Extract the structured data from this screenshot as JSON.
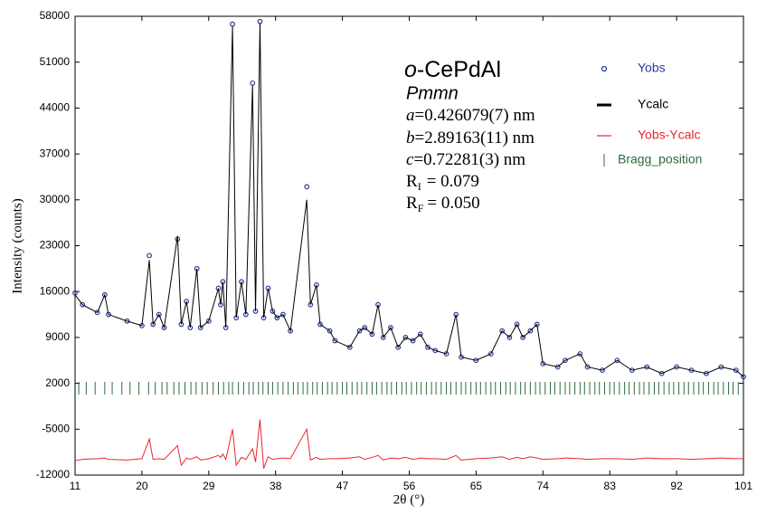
{
  "chart_data": {
    "type": "rietveld",
    "x_label": "2θ (°)",
    "y_label": "Intensity (counts)",
    "xlim": [
      11,
      101
    ],
    "xticks": [
      11,
      20,
      29,
      38,
      47,
      56,
      65,
      74,
      83,
      92,
      101
    ],
    "ylim": [
      -12000,
      58000
    ],
    "yticks": [
      -12000,
      -5000,
      2000,
      9000,
      16000,
      23000,
      30000,
      37000,
      44000,
      51000,
      58000
    ],
    "grid": false,
    "annotation": {
      "compound": {
        "prefix": "o",
        "name": "-CePdAl"
      },
      "space_group": "Pmmn",
      "a": {
        "symbol": "a",
        "text": "=0.426079(7) nm"
      },
      "b": {
        "symbol": "b",
        "text": "=2.89163(11) nm"
      },
      "c": {
        "symbol": "c",
        "text": "=0.72281(3)  nm"
      },
      "RI": {
        "base": "R",
        "sub": "I",
        "text": "= 0.079"
      },
      "RF": {
        "base": "R",
        "sub": "F",
        "text": "= 0.050"
      }
    },
    "x": [
      11,
      12,
      14,
      15,
      15.5,
      18,
      20,
      21,
      21.5,
      22.3,
      23,
      24.8,
      25.3,
      26,
      26.5,
      27.4,
      27.9,
      29,
      30.3,
      30.6,
      30.9,
      31.3,
      32.2,
      32.7,
      33.4,
      34,
      34.9,
      35.3,
      35.9,
      36.4,
      37,
      37.6,
      38.2,
      39,
      40,
      42.2,
      42.7,
      43.5,
      44,
      45.3,
      46,
      48,
      49.3,
      50,
      51,
      51.8,
      52.5,
      53.5,
      54.5,
      55.5,
      56.5,
      57.5,
      58.5,
      59.5,
      61,
      62.3,
      63,
      65,
      67,
      68.5,
      69.5,
      70.5,
      71.3,
      72.3,
      73.2,
      74,
      76,
      77,
      79,
      80,
      82,
      84,
      86,
      88,
      90,
      92,
      94,
      96,
      98,
      100,
      101
    ],
    "series": [
      {
        "name": "Yobs",
        "color": "#2b3a9c",
        "marker": "circle",
        "values": [
          15800,
          14000,
          12800,
          15500,
          12500,
          11500,
          10800,
          21500,
          11000,
          12500,
          10500,
          24000,
          11000,
          14500,
          10500,
          19500,
          10500,
          11500,
          16500,
          14000,
          17500,
          10500,
          56800,
          12000,
          17500,
          12500,
          47800,
          13000,
          57200,
          12000,
          16500,
          13000,
          12000,
          12500,
          10000,
          32000,
          14000,
          17000,
          11000,
          10000,
          8500,
          7500,
          10000,
          10500,
          9500,
          14000,
          9000,
          10500,
          7500,
          9000,
          8500,
          9500,
          7500,
          7000,
          6500,
          12500,
          6000,
          5500,
          6500,
          10000,
          9000,
          11000,
          9000,
          10000,
          11000,
          5000,
          4500,
          5500,
          6500,
          4500,
          4000,
          5500,
          4000,
          4500,
          3500,
          4500,
          4000,
          3500,
          4500,
          4000,
          3000
        ]
      },
      {
        "name": "Ycalc",
        "color": "#000000",
        "marker": "line",
        "values": [
          15500,
          14000,
          12800,
          15500,
          12500,
          11500,
          10800,
          20800,
          11000,
          12500,
          10500,
          24500,
          11000,
          14500,
          10500,
          19500,
          10500,
          11500,
          16500,
          14000,
          17500,
          10500,
          56500,
          12000,
          17500,
          12500,
          47500,
          13000,
          57000,
          12000,
          16500,
          13000,
          12000,
          12500,
          10000,
          30000,
          14000,
          17000,
          11000,
          10000,
          8500,
          7500,
          10000,
          10500,
          9500,
          14000,
          9000,
          10500,
          7500,
          9000,
          8500,
          9500,
          7500,
          7000,
          6500,
          12500,
          6000,
          5500,
          6500,
          10000,
          9000,
          11000,
          9000,
          10000,
          11000,
          5000,
          4500,
          5500,
          6500,
          4500,
          4000,
          5500,
          4000,
          4500,
          3500,
          4500,
          4000,
          3500,
          4500,
          4000,
          3000
        ]
      },
      {
        "name": "Yobs-Ycalc",
        "color": "#e8262b",
        "marker": "line",
        "values": [
          -9800,
          -9600,
          -9500,
          -9400,
          -9600,
          -9700,
          -9500,
          -6500,
          -9600,
          -9500,
          -9600,
          -7500,
          -10500,
          -9400,
          -9600,
          -9200,
          -9700,
          -9500,
          -9000,
          -9300,
          -8800,
          -9600,
          -5000,
          -10500,
          -9300,
          -9600,
          -8000,
          -10000,
          -3500,
          -11000,
          -9200,
          -9600,
          -9500,
          -9400,
          -9500,
          -5000,
          -9700,
          -9300,
          -9600,
          -9500,
          -9500,
          -9400,
          -9200,
          -9600,
          -9300,
          -9000,
          -9700,
          -9400,
          -9500,
          -9300,
          -9600,
          -9400,
          -9500,
          -9500,
          -9600,
          -9000,
          -9700,
          -9500,
          -9400,
          -9200,
          -9600,
          -9300,
          -9500,
          -9200,
          -9400,
          -9600,
          -9500,
          -9400,
          -9500,
          -9600,
          -9500,
          -9500,
          -9600,
          -9400,
          -9500,
          -9500,
          -9600,
          -9500,
          -9400,
          -9500,
          -9500
        ]
      }
    ],
    "bragg": {
      "name": "Bragg_position",
      "color": "#2e6b3e",
      "positions": [
        11.5,
        12.5,
        13.7,
        15,
        16,
        17.3,
        18.4,
        19.6,
        20.9,
        21.8,
        22.7,
        23.4,
        24.3,
        25,
        25.8,
        26.6,
        27.3,
        28.1,
        28.8,
        29.6,
        30.3,
        31,
        31.7,
        32.2,
        33,
        33.7,
        34.4,
        35,
        35.7,
        36.3,
        37,
        37.6,
        38.3,
        39,
        39.7,
        40.4,
        41,
        41.7,
        42.3,
        43,
        43.6,
        44.3,
        45,
        45.6,
        46.3,
        47,
        47.6,
        48.3,
        49,
        49.6,
        50.3,
        51,
        51.6,
        52.3,
        53,
        53.6,
        54.3,
        55,
        55.6,
        56.3,
        57,
        57.6,
        58.3,
        59,
        59.6,
        60.3,
        61,
        61.6,
        62.3,
        63,
        63.6,
        64.3,
        65,
        65.6,
        66.3,
        67,
        67.6,
        68.3,
        69,
        69.6,
        70.3,
        71,
        71.6,
        72.3,
        73,
        73.6,
        74.3,
        75,
        75.6,
        76.3,
        77,
        77.6,
        78.3,
        79,
        79.6,
        80.3,
        81,
        81.6,
        82.3,
        83,
        83.6,
        84.3,
        85,
        85.6,
        86.3,
        87,
        87.6,
        88.3,
        89,
        89.6,
        90.3,
        91,
        91.6,
        92.3,
        93,
        93.6,
        94.3,
        95,
        95.6,
        96.3,
        97,
        97.6,
        98.3,
        99,
        99.6,
        100.3
      ]
    }
  }
}
